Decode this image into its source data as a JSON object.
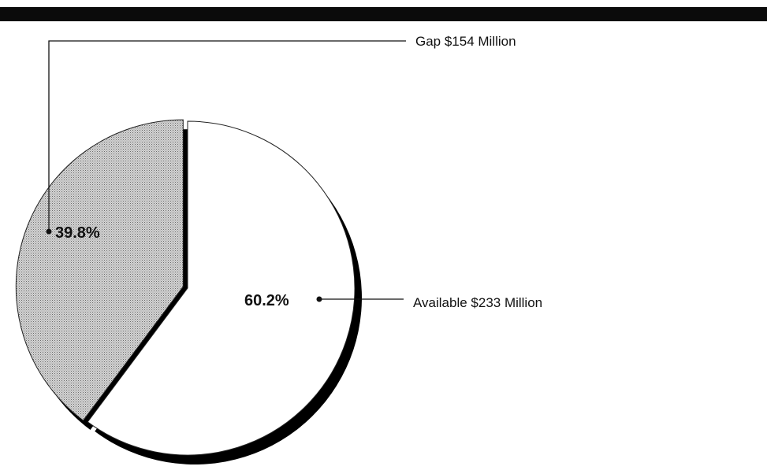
{
  "chart_data": {
    "type": "pie",
    "title": "",
    "slices": [
      {
        "label": "Available",
        "value": 233,
        "unit": "$ Million",
        "percent": 60.2,
        "percent_label": "60.2%",
        "callout": "Available  $233 Million",
        "fill": "#ffffff"
      },
      {
        "label": "Gap",
        "value": 154,
        "unit": "$ Million",
        "percent": 39.8,
        "percent_label": "39.8%",
        "callout": "Gap  $154 Million",
        "fill": "#c9c9c9",
        "exploded": true
      }
    ],
    "start_angle_deg": 0,
    "direction": "clockwise",
    "style": "3d-shadow"
  },
  "colors": {
    "header_bar": "#0b0b0b",
    "shadow": "#000000",
    "outline": "#222222"
  }
}
